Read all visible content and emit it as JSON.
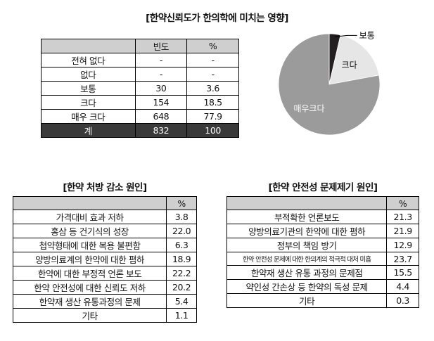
{
  "top_title": "[한약신뢰도가 한의학에 미치는 영향]",
  "freq_table": {
    "headers": [
      "",
      "빈도",
      "%"
    ],
    "rows": [
      [
        "전혀 없다",
        "-",
        "-"
      ],
      [
        "없다",
        "-",
        "-"
      ],
      [
        "보통",
        "30",
        "3.6"
      ],
      [
        "크다",
        "154",
        "18.5"
      ],
      [
        "매우 크다",
        "648",
        "77.9"
      ]
    ],
    "total": [
      "계",
      "832",
      "100"
    ]
  },
  "chart_data": [
    {
      "type": "pie",
      "categories": [
        "보통",
        "크다",
        "매우크다"
      ],
      "values": [
        3.6,
        18.5,
        77.9
      ],
      "colors": [
        "#231f20",
        "#e6e6e6",
        "#9b9b9b"
      ]
    },
    {
      "type": "table",
      "title": "[한약 처방 감소 원인]",
      "header": [
        "",
        "%"
      ],
      "rows": [
        [
          "가격대비 효과 저하",
          "3.8"
        ],
        [
          "홍삼 등 건기식의 성장",
          "22.0"
        ],
        [
          "첩약형태에 대한 복용 불편함",
          "6.3"
        ],
        [
          "양방의료계의 한약에 대한 폄하",
          "18.9"
        ],
        [
          "한약에 대한 부정적 언론 보도",
          "22.2"
        ],
        [
          "한약 안전성에 대한 신뢰도 저하",
          "20.2"
        ],
        [
          "한약재 생산 유통과정의 문제",
          "5.4"
        ],
        [
          "기타",
          "1.1"
        ]
      ]
    },
    {
      "type": "table",
      "title": "[한약 안전성 문제제기 원인]",
      "header": [
        "",
        "%"
      ],
      "rows": [
        [
          "부적확한 언론보도",
          "21.3"
        ],
        [
          "양방의료기관의 한약에 대한 폄하",
          "21.9"
        ],
        [
          "정부의 책임 방기",
          "12.9"
        ],
        [
          "한약 안전성 문제에 대한 한의계의 적극적 대처 미흡",
          "23.7"
        ],
        [
          "한약재 생산 유통 과정의 문제점",
          "15.5"
        ],
        [
          "약인성 간손상 등 한약의 독성 문제",
          "4.4"
        ],
        [
          "기타",
          "0.3"
        ]
      ]
    }
  ]
}
